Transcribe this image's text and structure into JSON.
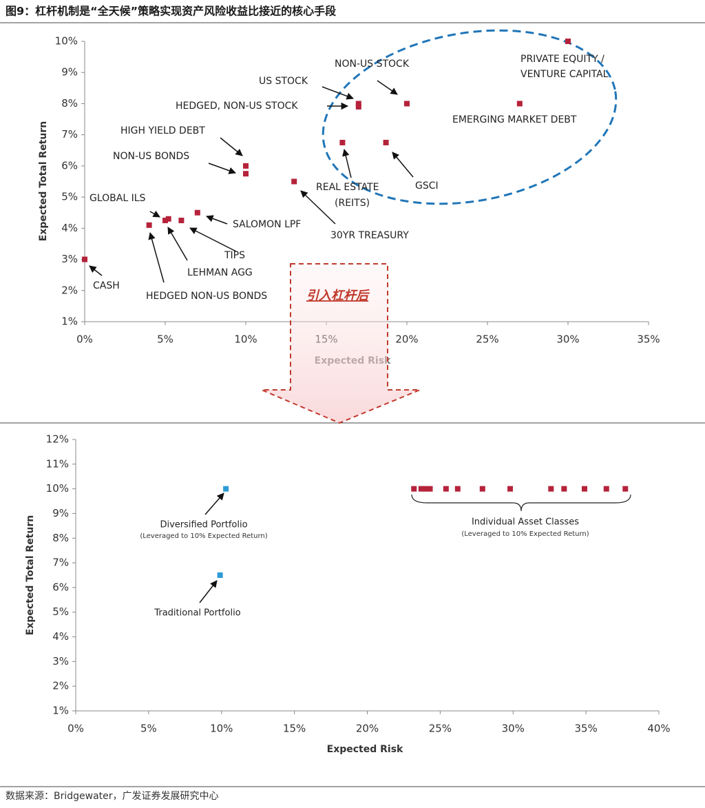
{
  "title": "图9：杠杆机制是“全天候”策略实现资产风险收益比接近的核心手段",
  "source": "数据来源：Bridgewater，广发证券发展研究中心",
  "arrow_text": "引入杠杆后",
  "chart_data": [
    {
      "type": "scatter",
      "xlabel": "Expected Risk",
      "ylabel": "Expected Total Return",
      "xlim": [
        0,
        35
      ],
      "xticks": [
        {
          "value": 0,
          "label": "0%"
        },
        {
          "value": 5,
          "label": "5%"
        },
        {
          "value": 10,
          "label": "10%"
        },
        {
          "value": 15,
          "label": "15%"
        },
        {
          "value": 20,
          "label": "20%"
        },
        {
          "value": 25,
          "label": "25%"
        },
        {
          "value": 30,
          "label": "30%"
        },
        {
          "value": 35,
          "label": "35%"
        }
      ],
      "ylim": [
        1,
        10
      ],
      "yticks": [
        {
          "value": 1,
          "label": "1%"
        },
        {
          "value": 2,
          "label": "2%"
        },
        {
          "value": 3,
          "label": "3%"
        },
        {
          "value": 4,
          "label": "4%"
        },
        {
          "value": 5,
          "label": "5%"
        },
        {
          "value": 6,
          "label": "6%"
        },
        {
          "value": 7,
          "label": "7%"
        },
        {
          "value": 8,
          "label": "8%"
        },
        {
          "value": 9,
          "label": "9%"
        },
        {
          "value": 10,
          "label": "10%"
        }
      ],
      "series": [
        {
          "color": "#b5233a",
          "x": [
            0,
            4,
            5,
            5.2,
            6,
            7,
            10,
            10,
            13,
            17,
            17,
            20,
            16,
            18.7,
            27,
            30
          ],
          "values": [
            3,
            4.1,
            4.25,
            4.3,
            4.25,
            4.5,
            6,
            5.75,
            5.5,
            8,
            7.9,
            8,
            6.75,
            6.75,
            8,
            10
          ],
          "labels": [
            [
              "CASH"
            ],
            [
              "HEDGED NON-US BONDS"
            ],
            [
              "GLOBAL ILS"
            ],
            [
              "LEHMAN AGG"
            ],
            [
              "TIPS"
            ],
            [
              "SALOMON LPF"
            ],
            [
              "HIGH YIELD DEBT"
            ],
            [
              "NON-US BONDS"
            ],
            [
              "30YR TREASURY"
            ],
            [
              "US STOCK"
            ],
            [
              "HEDGED, NON-US STOCK"
            ],
            [
              "NON-US STOCK"
            ],
            [
              "REAL ESTATE",
              "(REITS)"
            ],
            [
              "GSCI"
            ],
            [
              "EMERGING MARKET DEBT"
            ],
            [
              "PRIVATE EQUITY /",
              "VENTURE CAPITAL"
            ]
          ]
        }
      ]
    },
    {
      "type": "scatter",
      "xlabel": "Expected Risk",
      "ylabel": "Expected Total Return",
      "xlim": [
        0,
        40
      ],
      "xticks": [
        {
          "value": 0,
          "label": "0%"
        },
        {
          "value": 5,
          "label": "5%"
        },
        {
          "value": 10,
          "label": "10%"
        },
        {
          "value": 15,
          "label": "15%"
        },
        {
          "value": 20,
          "label": "20%"
        },
        {
          "value": 25,
          "label": "25%"
        },
        {
          "value": 30,
          "label": "30%"
        },
        {
          "value": 35,
          "label": "35%"
        },
        {
          "value": 40,
          "label": "40%"
        }
      ],
      "ylim": [
        1,
        12
      ],
      "yticks": [
        {
          "value": 1,
          "label": "1%"
        },
        {
          "value": 2,
          "label": "2%"
        },
        {
          "value": 3,
          "label": "3%"
        },
        {
          "value": 4,
          "label": "4%"
        },
        {
          "value": 5,
          "label": "5%"
        },
        {
          "value": 6,
          "label": "6%"
        },
        {
          "value": 7,
          "label": "7%"
        },
        {
          "value": 8,
          "label": "8%"
        },
        {
          "value": 9,
          "label": "9%"
        },
        {
          "value": 10,
          "label": "10%"
        },
        {
          "value": 11,
          "label": "11%"
        },
        {
          "value": 12,
          "label": "12%"
        }
      ],
      "series": [
        {
          "color": "#2e9bd6",
          "x": [
            10.3,
            9.9
          ],
          "values": [
            10,
            6.5
          ]
        },
        {
          "color": "#b5233a",
          "x": [
            23.2,
            23.7,
            24.0,
            24.3,
            25.4,
            26.2,
            27.9,
            29.8,
            32.6,
            33.5,
            34.9,
            36.4,
            37.7
          ],
          "values": [
            10,
            10,
            10,
            10,
            10,
            10,
            10,
            10,
            10,
            10,
            10,
            10,
            10
          ]
        }
      ],
      "annotations": [
        {
          "text": "Diversified Portfolio",
          "note": "(Leveraged to 10% Expected Return)"
        },
        {
          "text": "Traditional Portfolio"
        },
        {
          "text": "Individual Asset Classes",
          "note": "(Leveraged to 10% Expected Return)"
        }
      ]
    }
  ]
}
